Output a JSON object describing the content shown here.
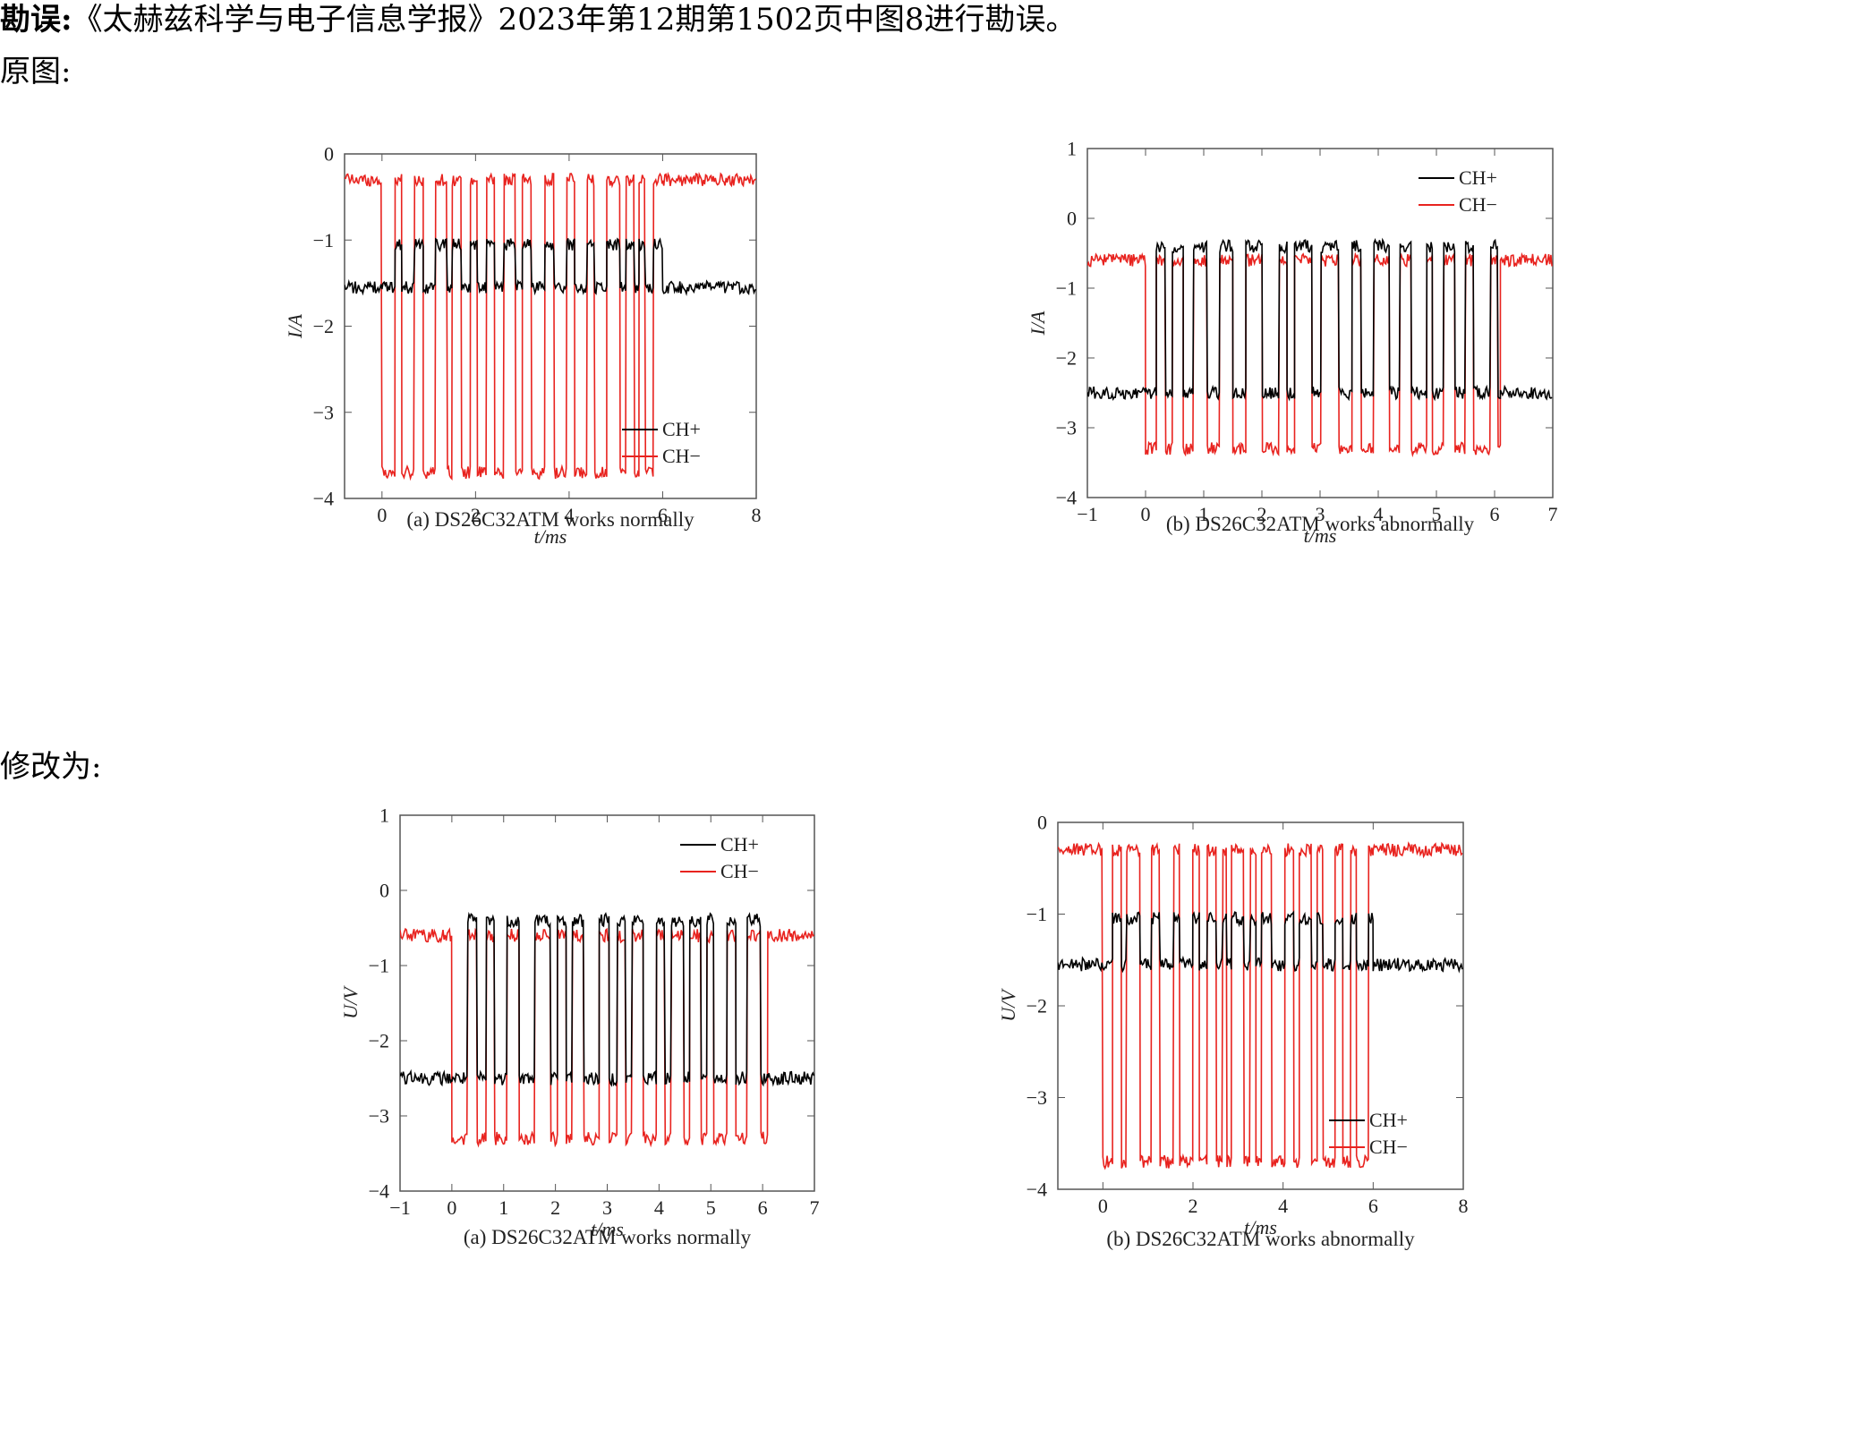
{
  "erratum": {
    "label": "勘误:",
    "text": "《太赫兹科学与电子信息学报》2023年第12期第1502页中图8进行勘误。"
  },
  "section_original": "原图:",
  "section_corrected": "修改为:",
  "chart_data": [
    {
      "id": "orig-a",
      "type": "line",
      "group": "原图",
      "caption": "(a) DS26C32ATM works normally",
      "xlabel": "t/ms",
      "ylabel": "I/A",
      "xlim": [
        -0.8,
        8
      ],
      "ylim": [
        -4,
        0
      ],
      "xticks": [
        0,
        2,
        4,
        6,
        8
      ],
      "yticks": [
        0,
        -1,
        -2,
        -3,
        -4
      ],
      "legend": "bottom-right",
      "series": [
        {
          "name": "CH+",
          "color": "#000000",
          "idle": -1.55,
          "high": -1.05,
          "low": -1.55
        },
        {
          "name": "CH−",
          "color": "#e8231f",
          "idle": -0.3,
          "high": -0.3,
          "low": -3.7
        }
      ],
      "burst": [
        0,
        6
      ]
    },
    {
      "id": "orig-b",
      "type": "line",
      "group": "原图",
      "caption": "(b) DS26C32ATM works abnormally",
      "xlabel": "t/ms",
      "ylabel": "I/A",
      "xlim": [
        -1,
        7
      ],
      "ylim": [
        -4,
        1
      ],
      "xticks": [
        -1,
        0,
        1,
        2,
        3,
        4,
        5,
        6,
        7
      ],
      "yticks": [
        1,
        0,
        -1,
        -2,
        -3,
        -4
      ],
      "legend": "top-right",
      "series": [
        {
          "name": "CH+",
          "color": "#000000",
          "idle": -2.5,
          "high": -0.4,
          "low": -2.5
        },
        {
          "name": "CH−",
          "color": "#e8231f",
          "idle": -0.6,
          "high": -0.6,
          "low": -3.3
        }
      ],
      "burst": [
        0,
        6.1
      ]
    },
    {
      "id": "corr-a",
      "type": "line",
      "group": "修改为",
      "caption": "(a) DS26C32ATM works normally",
      "xlabel": "t/ms",
      "ylabel": "U/V",
      "xlim": [
        -1,
        7
      ],
      "ylim": [
        -4,
        1
      ],
      "xticks": [
        -1,
        0,
        1,
        2,
        3,
        4,
        5,
        6,
        7
      ],
      "yticks": [
        1,
        0,
        -1,
        -2,
        -3,
        -4
      ],
      "legend": "top-right",
      "series": [
        {
          "name": "CH+",
          "color": "#000000",
          "idle": -2.5,
          "high": -0.4,
          "low": -2.5
        },
        {
          "name": "CH−",
          "color": "#e8231f",
          "idle": -0.6,
          "high": -0.6,
          "low": -3.3
        }
      ],
      "burst": [
        0,
        6.1
      ]
    },
    {
      "id": "corr-b",
      "type": "line",
      "group": "修改为",
      "caption": "(b) DS26C32ATM works abnormally",
      "xlabel": "t/ms",
      "ylabel": "U/V",
      "xlim": [
        -1,
        8
      ],
      "ylim": [
        -4,
        0
      ],
      "xticks": [
        0,
        2,
        4,
        6,
        8
      ],
      "yticks": [
        0,
        -1,
        -2,
        -3,
        -4
      ],
      "legend": "bottom-right",
      "series": [
        {
          "name": "CH+",
          "color": "#000000",
          "idle": -1.55,
          "high": -1.05,
          "low": -1.55
        },
        {
          "name": "CH−",
          "color": "#e8231f",
          "idle": -0.3,
          "high": -0.3,
          "low": -3.7
        }
      ],
      "burst": [
        0,
        6
      ]
    }
  ]
}
